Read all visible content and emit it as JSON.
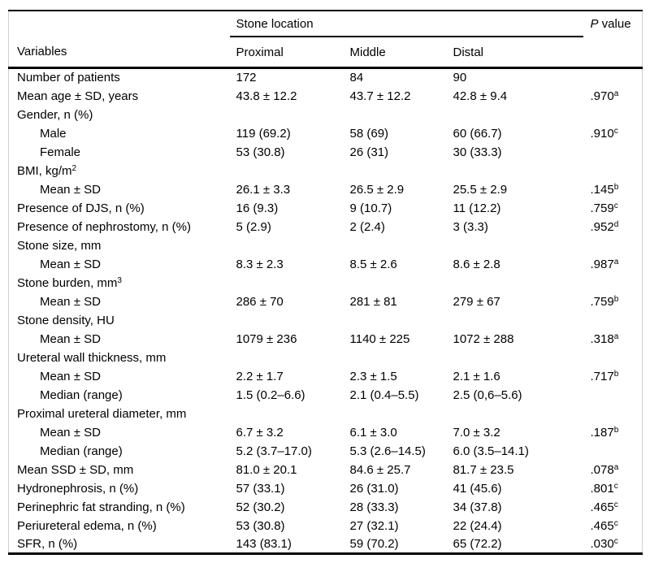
{
  "table": {
    "header": {
      "variables_label": "Variables",
      "group_label": "Stone location",
      "columns": [
        "Proximal",
        "Middle",
        "Distal"
      ],
      "p_italic": "P",
      "p_rest": " value"
    },
    "rows": [
      {
        "label": "Number of patients",
        "indent": 0,
        "label_sup": "",
        "proximal": "172",
        "middle": "84",
        "distal": "90",
        "p": "",
        "p_sup": ""
      },
      {
        "label": "Mean age ± SD, years",
        "indent": 0,
        "label_sup": "",
        "proximal": "43.8 ± 12.2",
        "middle": "43.7 ± 12.2",
        "distal": "42.8 ± 9.4",
        "p": ".970",
        "p_sup": "a"
      },
      {
        "label": "Gender, n (%)",
        "indent": 0,
        "label_sup": "",
        "proximal": "",
        "middle": "",
        "distal": "",
        "p": "",
        "p_sup": ""
      },
      {
        "label": "Male",
        "indent": 1,
        "label_sup": "",
        "proximal": "119 (69.2)",
        "middle": "58 (69)",
        "distal": "60 (66.7)",
        "p": ".910",
        "p_sup": "c"
      },
      {
        "label": "Female",
        "indent": 1,
        "label_sup": "",
        "proximal": "53 (30.8)",
        "middle": "26 (31)",
        "distal": "30 (33.3)",
        "p": "",
        "p_sup": ""
      },
      {
        "label": "BMI, kg/m",
        "indent": 0,
        "label_sup": "2",
        "proximal": "",
        "middle": "",
        "distal": "",
        "p": "",
        "p_sup": ""
      },
      {
        "label": "Mean ± SD",
        "indent": 1,
        "label_sup": "",
        "proximal": "26.1 ± 3.3",
        "middle": "26.5 ± 2.9",
        "distal": "25.5 ± 2.9",
        "p": ".145",
        "p_sup": "b"
      },
      {
        "label": "Presence of DJS, n (%)",
        "indent": 0,
        "label_sup": "",
        "proximal": "16 (9.3)",
        "middle": "9 (10.7)",
        "distal": "11 (12.2)",
        "p": ".759",
        "p_sup": "c"
      },
      {
        "label": "Presence of nephrostomy, n (%)",
        "indent": 0,
        "label_sup": "",
        "proximal": "5 (2.9)",
        "middle": "2 (2.4)",
        "distal": "3 (3.3)",
        "p": ".952",
        "p_sup": "d"
      },
      {
        "label": "Stone size, mm",
        "indent": 0,
        "label_sup": "",
        "proximal": "",
        "middle": "",
        "distal": "",
        "p": "",
        "p_sup": ""
      },
      {
        "label": "Mean ± SD",
        "indent": 1,
        "label_sup": "",
        "proximal": "8.3 ± 2.3",
        "middle": "8.5 ± 2.6",
        "distal": "8.6 ± 2.8",
        "p": ".987",
        "p_sup": "a"
      },
      {
        "label": "Stone burden, mm",
        "indent": 0,
        "label_sup": "3",
        "proximal": "",
        "middle": "",
        "distal": "",
        "p": "",
        "p_sup": ""
      },
      {
        "label": "Mean ± SD",
        "indent": 1,
        "label_sup": "",
        "proximal": "286 ± 70",
        "middle": "281 ± 81",
        "distal": "279 ± 67",
        "p": ".759",
        "p_sup": "b"
      },
      {
        "label": "Stone density, HU",
        "indent": 0,
        "label_sup": "",
        "proximal": "",
        "middle": "",
        "distal": "",
        "p": "",
        "p_sup": ""
      },
      {
        "label": "Mean ± SD",
        "indent": 1,
        "label_sup": "",
        "proximal": "1079 ± 236",
        "middle": "1140 ± 225",
        "distal": "1072 ± 288",
        "p": ".318",
        "p_sup": "a"
      },
      {
        "label": "Ureteral wall thickness, mm",
        "indent": 0,
        "label_sup": "",
        "proximal": "",
        "middle": "",
        "distal": "",
        "p": "",
        "p_sup": ""
      },
      {
        "label": "Mean ± SD",
        "indent": 1,
        "label_sup": "",
        "proximal": "2.2 ± 1.7",
        "middle": "2.3 ± 1.5",
        "distal": "2.1 ± 1.6",
        "p": ".717",
        "p_sup": "b"
      },
      {
        "label": "Median (range)",
        "indent": 1,
        "label_sup": "",
        "proximal": "1.5 (0.2–6.6)",
        "middle": "2.1 (0.4–5.5)",
        "distal": "2.5 (0,6–5.6)",
        "p": "",
        "p_sup": ""
      },
      {
        "label": "Proximal ureteral diameter, mm",
        "indent": 0,
        "label_sup": "",
        "proximal": "",
        "middle": "",
        "distal": "",
        "p": "",
        "p_sup": ""
      },
      {
        "label": "Mean ± SD",
        "indent": 1,
        "label_sup": "",
        "proximal": "6.7 ± 3.2",
        "middle": "6.1 ± 3.0",
        "distal": "7.0 ± 3.2",
        "p": ".187",
        "p_sup": "b"
      },
      {
        "label": "Median (range)",
        "indent": 1,
        "label_sup": "",
        "proximal": "5.2 (3.7–17.0)",
        "middle": "5.3 (2.6–14.5)",
        "distal": "6.0 (3.5–14.1)",
        "p": "",
        "p_sup": ""
      },
      {
        "label": "Mean SSD ± SD, mm",
        "indent": 0,
        "label_sup": "",
        "proximal": "81.0 ± 20.1",
        "middle": "84.6 ± 25.7",
        "distal": "81.7 ± 23.5",
        "p": ".078",
        "p_sup": "a"
      },
      {
        "label": "Hydronephrosis, n (%)",
        "indent": 0,
        "label_sup": "",
        "proximal": "57 (33.1)",
        "middle": "26 (31.0)",
        "distal": "41 (45.6)",
        "p": ".801",
        "p_sup": "c"
      },
      {
        "label": "Perinephric fat stranding, n (%)",
        "indent": 0,
        "label_sup": "",
        "proximal": "52 (30.2)",
        "middle": "28 (33.3)",
        "distal": "34 (37.8)",
        "p": ".465",
        "p_sup": "c"
      },
      {
        "label": "Periureteral edema, n (%)",
        "indent": 0,
        "label_sup": "",
        "proximal": "53 (30.8)",
        "middle": "27 (32.1)",
        "distal": "22 (24.4)",
        "p": ".465",
        "p_sup": "c"
      },
      {
        "label": "SFR, n (%)",
        "indent": 0,
        "label_sup": "",
        "proximal": "143 (83.1)",
        "middle": "59 (70.2)",
        "distal": "65 (72.2)",
        "p": ".030",
        "p_sup": "c"
      }
    ]
  }
}
